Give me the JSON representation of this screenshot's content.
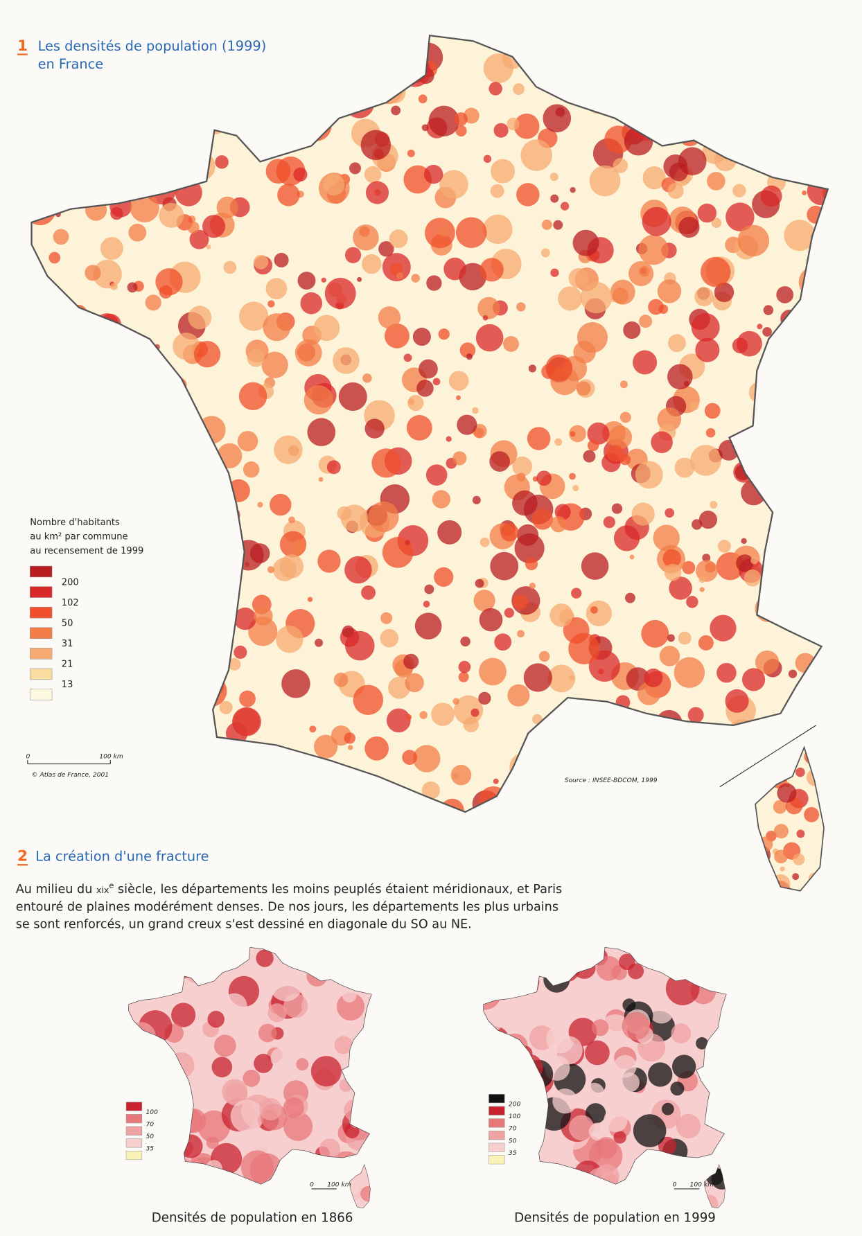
{
  "map1": {
    "number": "1",
    "title": [
      "Les densités de population (1999)",
      "en France"
    ],
    "legend": {
      "title": [
        "Nombre d'habitants",
        "au km² par commune",
        "au recensement de 1999"
      ],
      "colors": [
        "#b81e22",
        "#d9282a",
        "#ef4f2a",
        "#f27d48",
        "#f6ab72",
        "#f9dca0",
        "#fdf8e0"
      ],
      "labels": [
        200,
        102,
        50,
        31,
        21,
        13
      ]
    },
    "scale": {
      "zero": "0",
      "length": "100 km"
    },
    "credit": "© Atlas de France, 2001",
    "source": "Source : INSEE-BDCOM, 1999"
  },
  "map2": {
    "number": "2",
    "title": "La création d'une fracture",
    "paragraph": [
      [
        "Au milieu du ",
        "xix",
        "e",
        " siècle, les départements les moins peuplés étaient méridionaux, et Paris"
      ],
      [
        "entouré de plaines modérément denses. De nos jours, les départements les plus urbains"
      ],
      [
        "se sont renforcés, un grand creux s'est dessiné en diagonale du SO au NE."
      ]
    ],
    "maps": [
      {
        "caption": "Densités de population en 1866",
        "colors": [
          "#c8232f",
          "#e8777a",
          "#f0a3a3",
          "#f7cfcf",
          "#faf3b8"
        ],
        "labels": [
          100,
          70,
          50,
          35
        ],
        "scale": {
          "zero": "0",
          "length": "100 km"
        }
      },
      {
        "caption": "Densités de population en 1999",
        "colors": [
          "#111111",
          "#c8232f",
          "#e8777a",
          "#f0a3a3",
          "#f7cfcf",
          "#faf3b8"
        ],
        "labels": [
          200,
          100,
          70,
          50,
          35
        ],
        "scale": {
          "zero": "0",
          "length": "100 km"
        }
      }
    ]
  }
}
